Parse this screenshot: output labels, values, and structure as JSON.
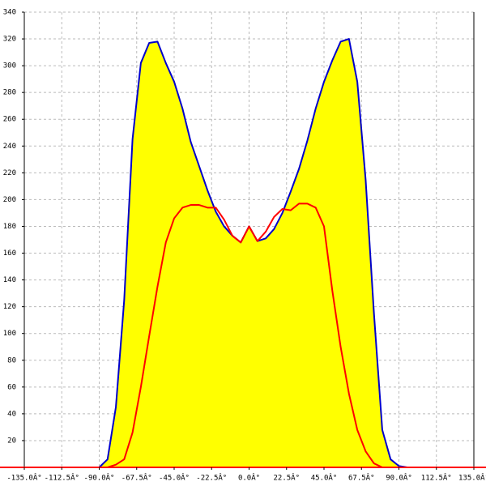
{
  "chart_data": {
    "type": "area",
    "x": [
      -95,
      -90,
      -85,
      -80,
      -75,
      -70,
      -65,
      -60,
      -55,
      -50,
      -45,
      -40,
      -35,
      -30,
      -25,
      -20,
      -15,
      -10,
      -5,
      0,
      5,
      10,
      15,
      20,
      25,
      30,
      35,
      40,
      45,
      50,
      55,
      60,
      65,
      70,
      75,
      80,
      85,
      90,
      95
    ],
    "series": [
      {
        "color": "#0000cc",
        "fill": "#ffff00",
        "values": [
          0,
          0,
          6,
          45,
          125,
          245,
          302,
          317,
          318,
          302,
          288,
          268,
          243,
          225,
          207,
          191,
          180,
          173,
          168,
          180,
          169,
          171,
          178,
          190,
          206,
          223,
          244,
          268,
          288,
          304,
          318,
          320,
          288,
          215,
          115,
          28,
          6,
          1,
          0
        ]
      },
      {
        "color": "#ff0000",
        "values": [
          0,
          0,
          0,
          2,
          6,
          26,
          60,
          98,
          135,
          168,
          186,
          194,
          196,
          196,
          194,
          194,
          185,
          173,
          168,
          180,
          169,
          176,
          187,
          193,
          192,
          197,
          197,
          194,
          180,
          132,
          90,
          55,
          28,
          12,
          3,
          0,
          0,
          0,
          0
        ]
      }
    ],
    "xlim": [
      -135,
      135
    ],
    "xticks": [
      {
        "value": -135,
        "label": "-135.0Â°"
      },
      {
        "value": -112.5,
        "label": "-112.5Â°"
      },
      {
        "value": -90,
        "label": "-90.0Â°"
      },
      {
        "value": -67.5,
        "label": "-67.5Â°"
      },
      {
        "value": -45,
        "label": "-45.0Â°"
      },
      {
        "value": -22.5,
        "label": "-22.5Â°"
      },
      {
        "value": 0,
        "label": "0.0Â°"
      },
      {
        "value": 22.5,
        "label": "22.5Â°"
      },
      {
        "value": 45,
        "label": "45.0Â°"
      },
      {
        "value": 67.5,
        "label": "67.5Â°"
      },
      {
        "value": 90,
        "label": "90.0Â°"
      },
      {
        "value": 112.5,
        "label": "112.5Â°"
      },
      {
        "value": 135,
        "label": "135.0Â°"
      }
    ],
    "ylim": [
      0,
      340
    ],
    "yticks": [
      20,
      40,
      60,
      80,
      100,
      120,
      140,
      160,
      180,
      200,
      220,
      240,
      260,
      280,
      300,
      320,
      340
    ],
    "grid": true
  }
}
